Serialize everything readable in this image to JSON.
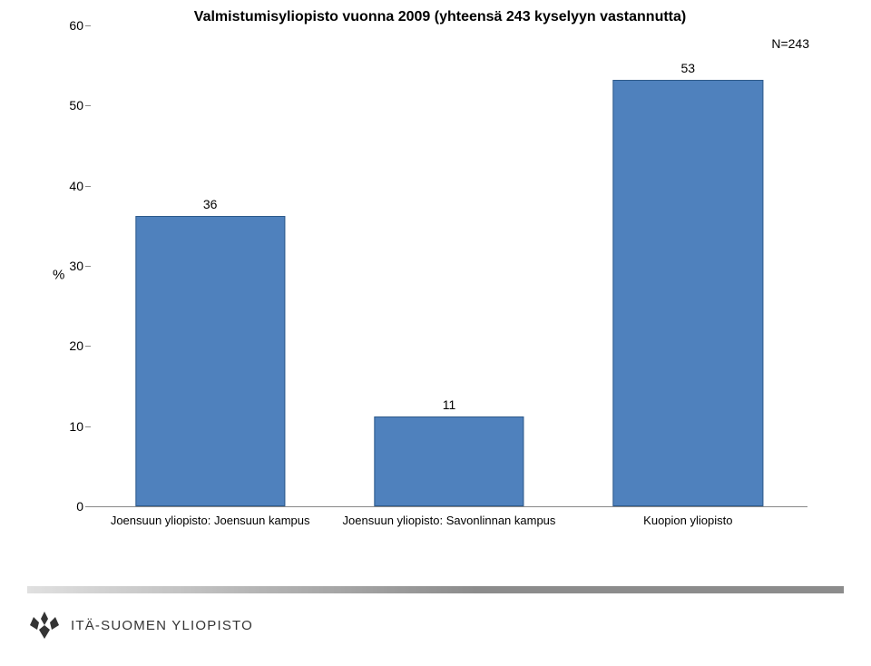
{
  "chart": {
    "type": "bar",
    "title": "Valmistumisyliopisto vuonna 2009 (yhteensä 243 kyselyyn vastannutta)",
    "n_label": "N=243",
    "y_axis_label": "%",
    "ylim_max": 60,
    "ytick_step": 10,
    "yticks": [
      60,
      50,
      40,
      30,
      20,
      10,
      0
    ],
    "categories": [
      "Joensuun yliopisto: Joensuun kampus",
      "Joensuun yliopisto: Savonlinnan kampus",
      "Kuopion yliopisto"
    ],
    "values": [
      36,
      11,
      53
    ],
    "bar_color": "#4f81bd",
    "bar_border_color": "#2e5a8a",
    "title_fontsize": 16,
    "tick_fontsize": 14,
    "xlabel_fontsize": 13,
    "value_fontsize": 14,
    "background_color": "#ffffff"
  },
  "footer": {
    "logo_text": "ITÄ-SUOMEN YLIOPISTO",
    "grad_colors": [
      "#e0e0e0",
      "#8c8c8c"
    ]
  }
}
